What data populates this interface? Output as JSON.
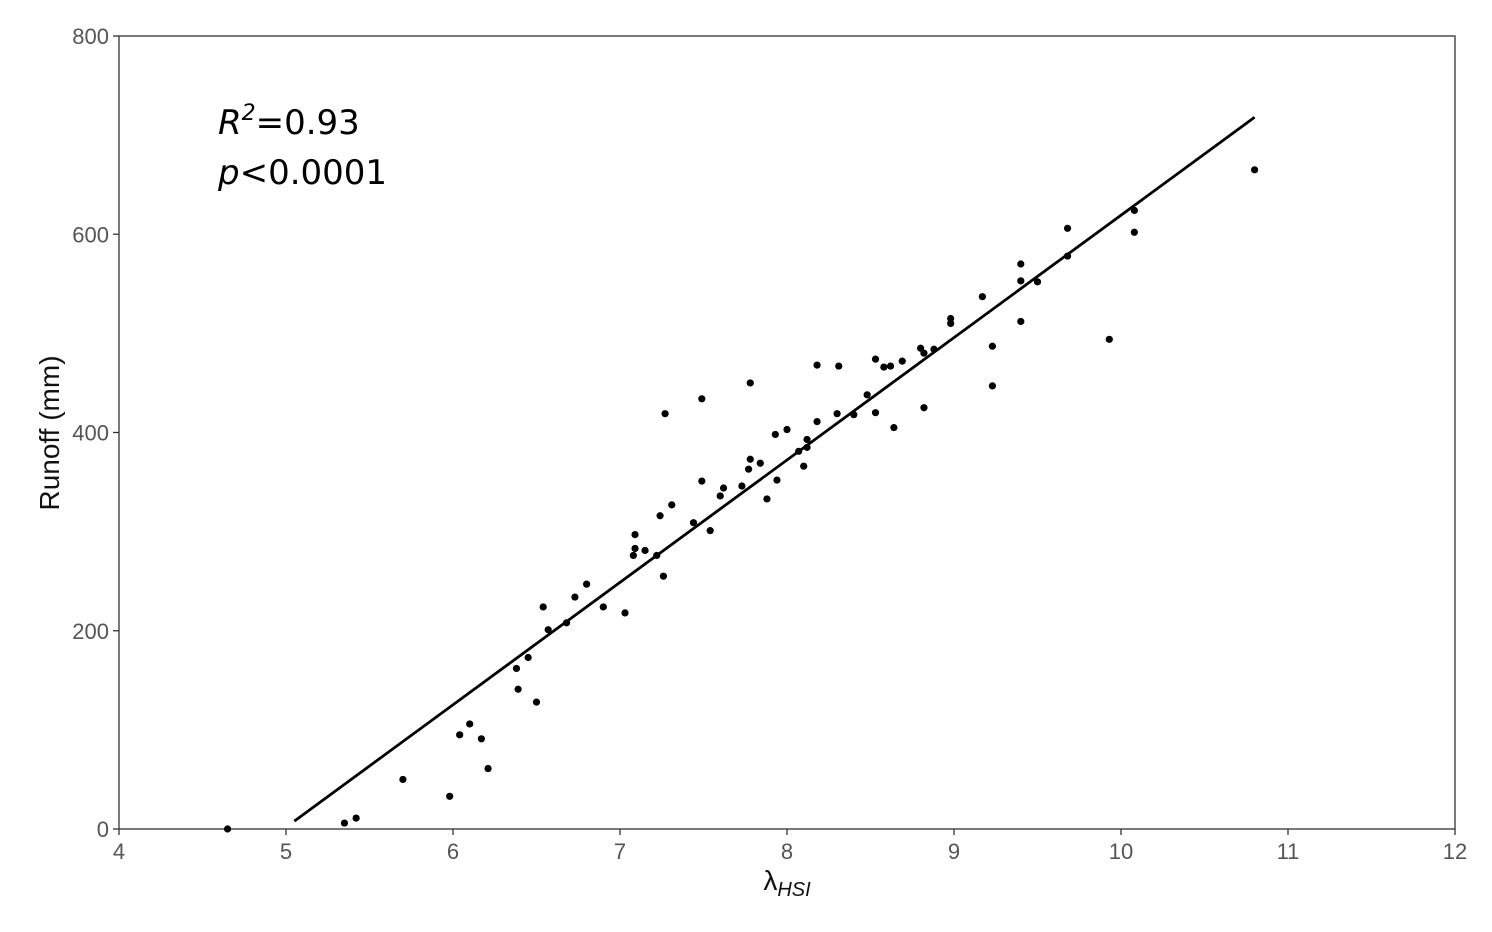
{
  "chart_data": {
    "type": "scatter",
    "title": "",
    "xlabel": "λ",
    "xlabel_sub": "HSI",
    "ylabel": "Runoff (mm)",
    "xlim": [
      4,
      12
    ],
    "ylim": [
      0,
      800
    ],
    "x_ticks": [
      "4",
      "5",
      "6",
      "7",
      "8",
      "9",
      "10",
      "11",
      "12"
    ],
    "y_ticks": [
      "0",
      "200",
      "400",
      "600",
      "800"
    ],
    "grid": false,
    "legend": "none",
    "annotations": {
      "r2_symbol": "R",
      "r2_sup": "2",
      "r2_value": "=0.93",
      "p_symbol": "p",
      "p_value": "<0.0001"
    },
    "fit_line": {
      "x": [
        5.05,
        10.8
      ],
      "y": [
        8,
        718
      ]
    },
    "series": [
      {
        "color": "#000000",
        "points": [
          [
            4.65,
            0
          ],
          [
            5.35,
            6
          ],
          [
            5.42,
            11
          ],
          [
            5.7,
            50
          ],
          [
            5.98,
            33
          ],
          [
            6.04,
            95
          ],
          [
            6.1,
            106
          ],
          [
            6.17,
            91
          ],
          [
            6.21,
            61
          ],
          [
            6.38,
            162
          ],
          [
            6.39,
            141
          ],
          [
            6.45,
            173
          ],
          [
            6.5,
            128
          ],
          [
            6.54,
            224
          ],
          [
            6.57,
            201
          ],
          [
            6.68,
            208
          ],
          [
            6.73,
            234
          ],
          [
            6.8,
            247
          ],
          [
            6.9,
            224
          ],
          [
            7.03,
            218
          ],
          [
            7.08,
            276
          ],
          [
            7.09,
            283
          ],
          [
            7.09,
            297
          ],
          [
            7.15,
            281
          ],
          [
            7.22,
            276
          ],
          [
            7.24,
            316
          ],
          [
            7.26,
            255
          ],
          [
            7.27,
            419
          ],
          [
            7.31,
            327
          ],
          [
            7.44,
            309
          ],
          [
            7.49,
            434
          ],
          [
            7.49,
            351
          ],
          [
            7.54,
            301
          ],
          [
            7.6,
            336
          ],
          [
            7.62,
            344
          ],
          [
            7.73,
            346
          ],
          [
            7.77,
            363
          ],
          [
            7.78,
            373
          ],
          [
            7.78,
            450
          ],
          [
            7.84,
            369
          ],
          [
            7.88,
            333
          ],
          [
            7.93,
            398
          ],
          [
            7.94,
            352
          ],
          [
            8.0,
            403
          ],
          [
            8.07,
            381
          ],
          [
            8.1,
            366
          ],
          [
            8.12,
            385
          ],
          [
            8.12,
            393
          ],
          [
            8.18,
            468
          ],
          [
            8.18,
            411
          ],
          [
            8.3,
            419
          ],
          [
            8.31,
            467
          ],
          [
            8.4,
            418
          ],
          [
            8.48,
            438
          ],
          [
            8.53,
            474
          ],
          [
            8.53,
            420
          ],
          [
            8.58,
            466
          ],
          [
            8.62,
            467
          ],
          [
            8.64,
            405
          ],
          [
            8.69,
            472
          ],
          [
            8.8,
            485
          ],
          [
            8.82,
            425
          ],
          [
            8.82,
            480
          ],
          [
            8.88,
            484
          ],
          [
            8.98,
            515
          ],
          [
            8.98,
            510
          ],
          [
            9.17,
            537
          ],
          [
            9.23,
            487
          ],
          [
            9.23,
            447
          ],
          [
            9.4,
            512
          ],
          [
            9.4,
            553
          ],
          [
            9.4,
            570
          ],
          [
            9.5,
            552
          ],
          [
            9.68,
            606
          ],
          [
            9.68,
            578
          ],
          [
            9.93,
            494
          ],
          [
            10.08,
            624
          ],
          [
            10.08,
            602
          ],
          [
            10.8,
            665
          ]
        ]
      }
    ]
  }
}
